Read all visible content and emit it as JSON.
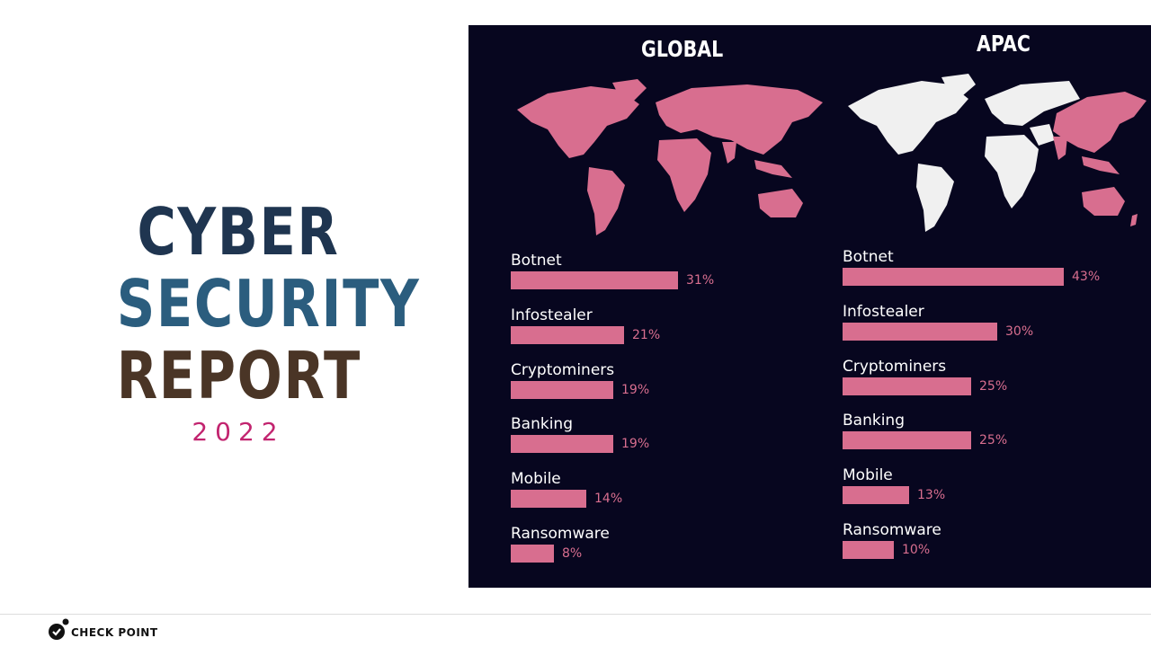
{
  "report": {
    "line1": "CYBER",
    "line2": "SECURITY",
    "line3": "REPORT",
    "year": "2022"
  },
  "brand": {
    "name": "CHECK POINT",
    "icon": "check-point-logo-icon"
  },
  "colors": {
    "panel_bg": "#07061f",
    "bar": "#d86e8f",
    "map_highlight": "#d86e8f",
    "map_base": "#f0f0f0",
    "year": "#c2246f"
  },
  "chart_data": [
    {
      "type": "bar",
      "orientation": "horizontal",
      "title": "GLOBAL",
      "map_highlight": "all regions",
      "categories": [
        "Botnet",
        "Infostealer",
        "Cryptominers",
        "Banking",
        "Mobile",
        "Ransomware"
      ],
      "values": [
        31,
        21,
        19,
        19,
        14,
        8
      ],
      "value_labels": [
        "31%",
        "21%",
        "19%",
        "19%",
        "14%",
        "8%"
      ],
      "unit": "%"
    },
    {
      "type": "bar",
      "orientation": "horizontal",
      "title": "APAC",
      "map_highlight": "Asia-Pacific",
      "categories": [
        "Botnet",
        "Infostealer",
        "Cryptominers",
        "Banking",
        "Mobile",
        "Ransomware"
      ],
      "values": [
        43,
        30,
        25,
        25,
        13,
        10
      ],
      "value_labels": [
        "43%",
        "30%",
        "25%",
        "25%",
        "13%",
        "10%"
      ],
      "unit": "%"
    }
  ]
}
